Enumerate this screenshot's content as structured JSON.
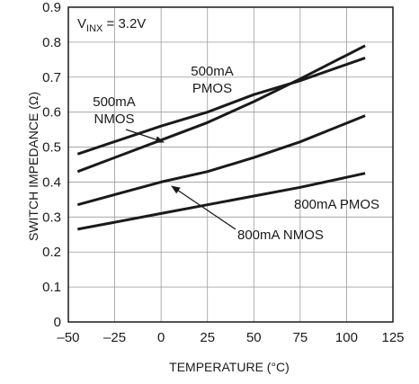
{
  "chart_data": {
    "type": "line",
    "xlabel": "TEMPERATURE (°C)",
    "ylabel": "SWITCH IMPEDANCE (Ω)",
    "xlim": [
      -50,
      125
    ],
    "ylim": [
      0,
      0.9
    ],
    "xticks": [
      -50,
      -25,
      0,
      25,
      50,
      75,
      100,
      125
    ],
    "xtick_labels": [
      "–50",
      "–25",
      "0",
      "25",
      "50",
      "75",
      "100",
      "125"
    ],
    "yticks": [
      0,
      0.1,
      0.2,
      0.3,
      0.4,
      0.5,
      0.6,
      0.7,
      0.8,
      0.9
    ],
    "ytick_labels": [
      "0",
      "0.1",
      "0.2",
      "0.3",
      "0.4",
      "0.5",
      "0.6",
      "0.7",
      "0.8",
      "0.9"
    ],
    "grid": true,
    "condition": {
      "main": "V",
      "sub": "INX",
      "rest": " = 3.2V"
    },
    "series": [
      {
        "name": "500mA PMOS",
        "x": [
          -45,
          0,
          25,
          50,
          75,
          110
        ],
        "y": [
          0.48,
          0.56,
          0.6,
          0.65,
          0.69,
          0.755
        ]
      },
      {
        "name": "500mA NMOS",
        "x": [
          -45,
          0,
          25,
          50,
          75,
          110
        ],
        "y": [
          0.43,
          0.52,
          0.57,
          0.63,
          0.695,
          0.79
        ]
      },
      {
        "name": "800mA NMOS",
        "x": [
          -45,
          0,
          25,
          50,
          75,
          110
        ],
        "y": [
          0.335,
          0.4,
          0.43,
          0.47,
          0.515,
          0.59
        ]
      },
      {
        "name": "800mA PMOS",
        "x": [
          -45,
          0,
          25,
          50,
          75,
          110
        ],
        "y": [
          0.265,
          0.31,
          0.335,
          0.36,
          0.385,
          0.425
        ]
      }
    ],
    "annotations": [
      {
        "lines": [
          "500mA",
          "PMOS"
        ]
      },
      {
        "lines": [
          "500mA",
          "NMOS"
        ]
      },
      {
        "lines": [
          "800mA NMOS"
        ]
      },
      {
        "lines": [
          "800mA PMOS"
        ]
      }
    ]
  }
}
